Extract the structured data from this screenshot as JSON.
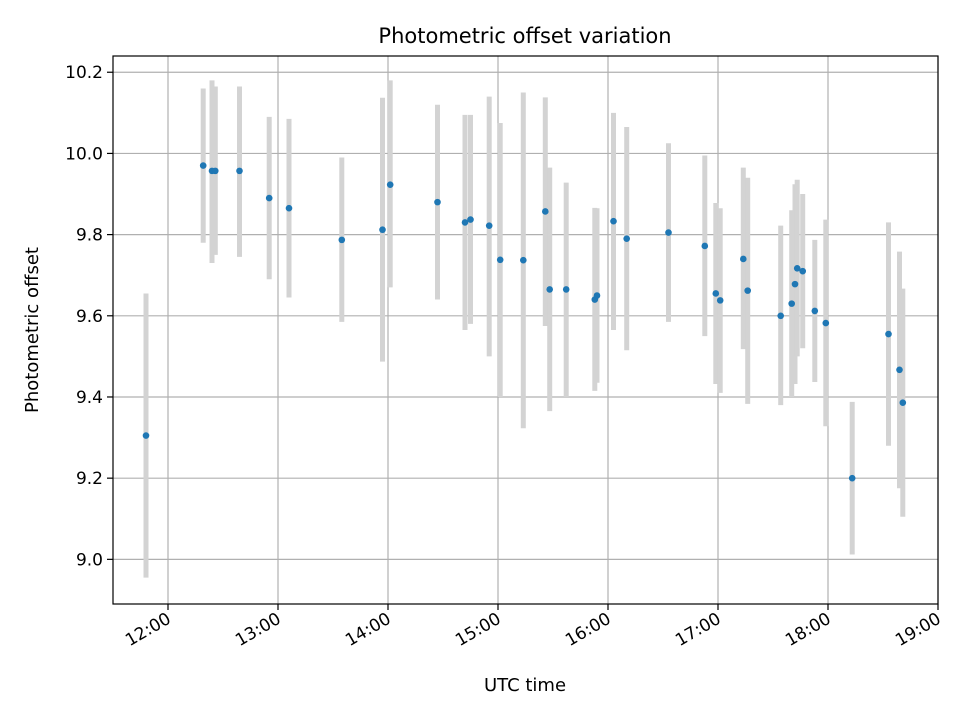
{
  "chart_data": {
    "type": "scatter",
    "title": "Photometric offset variation",
    "xlabel": "UTC time",
    "ylabel": "Photometric offset",
    "x_unit": "hours",
    "xlim": [
      11.5,
      19.0
    ],
    "ylim": [
      8.89,
      10.24
    ],
    "xticks": [
      12,
      13,
      14,
      15,
      16,
      17,
      18,
      19
    ],
    "xtick_labels": [
      "12:00",
      "13:00",
      "14:00",
      "15:00",
      "16:00",
      "17:00",
      "18:00",
      "19:00"
    ],
    "yticks": [
      9.0,
      9.2,
      9.4,
      9.6,
      9.8,
      10.0,
      10.2
    ],
    "ytick_labels": [
      "9.0",
      "9.2",
      "9.4",
      "9.6",
      "9.8",
      "10.0",
      "10.2"
    ],
    "grid": true,
    "colors": {
      "point": "#1f77b4",
      "errorbar": "#d3d3d3",
      "grid": "#b0b0b0",
      "axes": "#000000"
    },
    "points": [
      {
        "t": 11.8,
        "y": 9.305,
        "ylo": 8.955,
        "yhi": 9.655
      },
      {
        "t": 12.32,
        "y": 9.97,
        "ylo": 9.78,
        "yhi": 10.16
      },
      {
        "t": 12.4,
        "y": 9.957,
        "ylo": 9.73,
        "yhi": 10.18
      },
      {
        "t": 12.43,
        "y": 9.957,
        "ylo": 9.75,
        "yhi": 10.165
      },
      {
        "t": 12.65,
        "y": 9.957,
        "ylo": 9.745,
        "yhi": 10.165
      },
      {
        "t": 12.92,
        "y": 9.89,
        "ylo": 9.69,
        "yhi": 10.09
      },
      {
        "t": 13.1,
        "y": 9.865,
        "ylo": 9.645,
        "yhi": 10.085
      },
      {
        "t": 13.58,
        "y": 9.787,
        "ylo": 9.585,
        "yhi": 9.99
      },
      {
        "t": 13.95,
        "y": 9.812,
        "ylo": 9.487,
        "yhi": 10.137
      },
      {
        "t": 14.02,
        "y": 9.923,
        "ylo": 9.67,
        "yhi": 10.18
      },
      {
        "t": 14.45,
        "y": 9.88,
        "ylo": 9.64,
        "yhi": 10.12
      },
      {
        "t": 14.7,
        "y": 9.83,
        "ylo": 9.565,
        "yhi": 10.095
      },
      {
        "t": 14.75,
        "y": 9.837,
        "ylo": 9.58,
        "yhi": 10.095
      },
      {
        "t": 14.92,
        "y": 9.822,
        "ylo": 9.5,
        "yhi": 10.14
      },
      {
        "t": 15.02,
        "y": 9.738,
        "ylo": 9.4,
        "yhi": 10.075
      },
      {
        "t": 15.23,
        "y": 9.737,
        "ylo": 9.323,
        "yhi": 10.15
      },
      {
        "t": 15.43,
        "y": 9.857,
        "ylo": 9.575,
        "yhi": 10.138
      },
      {
        "t": 15.47,
        "y": 9.665,
        "ylo": 9.365,
        "yhi": 9.965
      },
      {
        "t": 15.62,
        "y": 9.665,
        "ylo": 9.4,
        "yhi": 9.928
      },
      {
        "t": 15.88,
        "y": 9.64,
        "ylo": 9.415,
        "yhi": 9.866
      },
      {
        "t": 15.9,
        "y": 9.65,
        "ylo": 9.435,
        "yhi": 9.865
      },
      {
        "t": 16.05,
        "y": 9.833,
        "ylo": 9.565,
        "yhi": 10.1
      },
      {
        "t": 16.17,
        "y": 9.79,
        "ylo": 9.515,
        "yhi": 10.065
      },
      {
        "t": 16.55,
        "y": 9.805,
        "ylo": 9.585,
        "yhi": 10.025
      },
      {
        "t": 16.88,
        "y": 9.772,
        "ylo": 9.55,
        "yhi": 9.995
      },
      {
        "t": 16.98,
        "y": 9.655,
        "ylo": 9.432,
        "yhi": 9.878
      },
      {
        "t": 17.02,
        "y": 9.638,
        "ylo": 9.41,
        "yhi": 9.865
      },
      {
        "t": 17.23,
        "y": 9.74,
        "ylo": 9.518,
        "yhi": 9.965
      },
      {
        "t": 17.27,
        "y": 9.662,
        "ylo": 9.383,
        "yhi": 9.94
      },
      {
        "t": 17.57,
        "y": 9.6,
        "ylo": 9.38,
        "yhi": 9.822
      },
      {
        "t": 17.67,
        "y": 9.63,
        "ylo": 9.4,
        "yhi": 9.86
      },
      {
        "t": 17.7,
        "y": 9.678,
        "ylo": 9.432,
        "yhi": 9.924
      },
      {
        "t": 17.72,
        "y": 9.717,
        "ylo": 9.5,
        "yhi": 9.935
      },
      {
        "t": 17.77,
        "y": 9.71,
        "ylo": 9.52,
        "yhi": 9.9
      },
      {
        "t": 17.88,
        "y": 9.612,
        "ylo": 9.437,
        "yhi": 9.787
      },
      {
        "t": 17.98,
        "y": 9.582,
        "ylo": 9.328,
        "yhi": 9.837
      },
      {
        "t": 18.22,
        "y": 9.2,
        "ylo": 9.012,
        "yhi": 9.388
      },
      {
        "t": 18.55,
        "y": 9.555,
        "ylo": 9.28,
        "yhi": 9.83
      },
      {
        "t": 18.65,
        "y": 9.467,
        "ylo": 9.175,
        "yhi": 9.758
      },
      {
        "t": 18.68,
        "y": 9.386,
        "ylo": 9.105,
        "yhi": 9.667
      }
    ]
  }
}
